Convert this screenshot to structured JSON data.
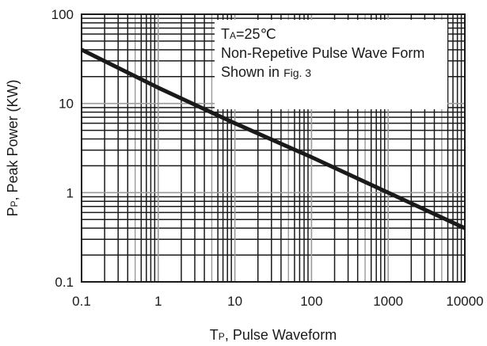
{
  "chart_data": {
    "type": "line",
    "title": "",
    "xlabel": {
      "main": "T",
      "sub": "P",
      "rest": ", Pulse Waveform"
    },
    "ylabel": {
      "main": "P",
      "sub": "P",
      "rest": ", Peak Power  (KW)"
    },
    "x_scale": "log",
    "y_scale": "log",
    "xlim": [
      0.1,
      10000
    ],
    "ylim": [
      0.1,
      100
    ],
    "x_ticks": [
      {
        "value": 0.1,
        "label": "0.1"
      },
      {
        "value": 1,
        "label": "1"
      },
      {
        "value": 10,
        "label": "10"
      },
      {
        "value": 100,
        "label": "100"
      },
      {
        "value": 1000,
        "label": "1000"
      },
      {
        "value": 10000,
        "label": "10000"
      }
    ],
    "y_ticks": [
      {
        "value": 0.1,
        "label": "0.1"
      },
      {
        "value": 1,
        "label": "1"
      },
      {
        "value": 10,
        "label": "10"
      },
      {
        "value": 100,
        "label": "100"
      }
    ],
    "grid": true,
    "series": [
      {
        "x": [
          0.1,
          1,
          10,
          100,
          1000,
          10000
        ],
        "y": [
          40,
          15,
          6,
          2.5,
          1.0,
          0.4
        ],
        "color": "#1a1a1a"
      }
    ],
    "annotation": {
      "lines": [
        [
          {
            "t": "T",
            "style": "main"
          },
          {
            "t": "A",
            "style": "sub"
          },
          {
            "t": "=25℃",
            "style": "main"
          }
        ],
        [
          {
            "t": "Non-Repetive Pulse Wave Form",
            "style": "main"
          }
        ],
        [
          {
            "t": "Shown in ",
            "style": "main"
          },
          {
            "t": "Fig. 3",
            "style": "small"
          }
        ]
      ]
    },
    "colors": {
      "grid_dark": "#1a1a1a",
      "grid_light": "#9a9a9a",
      "curve": "#1a1a1a"
    }
  }
}
